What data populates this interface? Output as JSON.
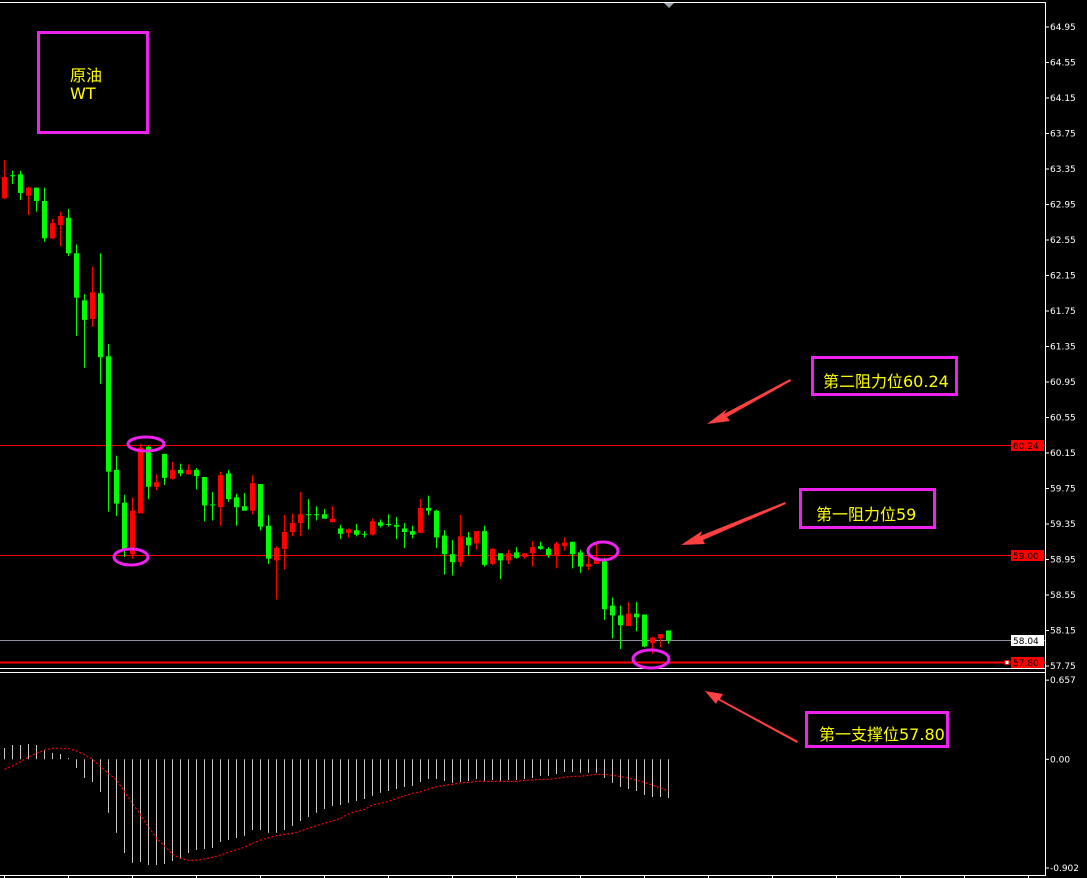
{
  "instrument_box": {
    "line1": "原油",
    "line2": "WT"
  },
  "annotations": [
    {
      "label": "第二阻力位60.24"
    },
    {
      "label": "第一阻力位59"
    },
    {
      "label": "第一支撑位57.80"
    }
  ],
  "colors": {
    "background": "#000000",
    "up_candle": "#ff0000",
    "down_candle": "#00ff00",
    "annotation_border": "#ee22ee",
    "annotation_text": "#ffff00",
    "arrow": "#ff4040",
    "level_line": "#ff0000",
    "last_price_line": "#8a8f99",
    "histogram": "#c8c8c8",
    "signal_line": "#ff0000"
  },
  "chart_data": [
    {
      "type": "candlestick",
      "price_axis_ticks": [
        "64.95",
        "64.55",
        "64.15",
        "63.75",
        "63.35",
        "62.95",
        "62.55",
        "62.15",
        "61.75",
        "61.35",
        "60.95",
        "60.55",
        "60.15",
        "59.75",
        "59.35",
        "58.95",
        "58.55",
        "58.15",
        "57.75"
      ],
      "ylim": [
        57.7,
        65.2
      ],
      "ohlc_fields": [
        "open",
        "high",
        "low",
        "close"
      ],
      "candles": [
        [
          63.02,
          63.45,
          63.01,
          63.26
        ],
        [
          63.28,
          63.33,
          63.18,
          63.27
        ],
        [
          63.29,
          63.33,
          63.0,
          63.08
        ],
        [
          63.05,
          63.15,
          62.83,
          63.14
        ],
        [
          63.14,
          63.14,
          62.87,
          62.99
        ],
        [
          62.99,
          63.14,
          62.53,
          62.57
        ],
        [
          62.57,
          62.79,
          62.56,
          62.74
        ],
        [
          62.72,
          62.87,
          62.48,
          62.82
        ],
        [
          62.8,
          62.9,
          62.37,
          62.4
        ],
        [
          62.4,
          62.5,
          61.47,
          61.9
        ],
        [
          61.87,
          61.94,
          61.11,
          61.65
        ],
        [
          61.66,
          62.25,
          61.57,
          61.96
        ],
        [
          61.95,
          62.4,
          60.93,
          61.23
        ],
        [
          61.24,
          61.38,
          59.49,
          59.94
        ],
        [
          59.96,
          60.12,
          59.44,
          59.58
        ],
        [
          59.59,
          59.68,
          58.98,
          59.06
        ],
        [
          59.01,
          59.65,
          58.96,
          59.5
        ],
        [
          59.47,
          60.25,
          59.47,
          60.21
        ],
        [
          60.22,
          60.23,
          59.63,
          59.77
        ],
        [
          59.77,
          59.91,
          59.73,
          59.82
        ],
        [
          60.14,
          60.14,
          59.79,
          59.87
        ],
        [
          59.86,
          60.05,
          59.85,
          59.96
        ],
        [
          59.96,
          60.03,
          59.89,
          59.92
        ],
        [
          59.91,
          60.02,
          59.91,
          59.96
        ],
        [
          59.96,
          59.98,
          59.74,
          59.89
        ],
        [
          59.88,
          59.88,
          59.38,
          59.56
        ],
        [
          59.57,
          59.71,
          59.39,
          59.56
        ],
        [
          59.54,
          59.94,
          59.33,
          59.9
        ],
        [
          59.92,
          59.96,
          59.6,
          59.63
        ],
        [
          59.65,
          59.69,
          59.33,
          59.54
        ],
        [
          59.55,
          59.7,
          59.5,
          59.5
        ],
        [
          59.5,
          59.9,
          59.46,
          59.81
        ],
        [
          59.8,
          59.8,
          59.28,
          59.32
        ],
        [
          59.33,
          59.45,
          58.9,
          58.96
        ],
        [
          58.94,
          59.1,
          58.5,
          59.08
        ],
        [
          59.07,
          59.45,
          58.84,
          59.26
        ],
        [
          59.26,
          59.47,
          59.21,
          59.36
        ],
        [
          59.36,
          59.71,
          59.21,
          59.46
        ],
        [
          59.46,
          59.63,
          59.29,
          59.45
        ],
        [
          59.46,
          59.55,
          59.39,
          59.45
        ],
        [
          59.46,
          59.52,
          59.41,
          59.41
        ],
        [
          59.37,
          59.55,
          59.37,
          59.41
        ],
        [
          59.3,
          59.34,
          59.18,
          59.24
        ],
        [
          59.25,
          59.3,
          59.2,
          59.29
        ],
        [
          59.28,
          59.35,
          59.21,
          59.23
        ],
        [
          59.24,
          59.27,
          59.2,
          59.23
        ],
        [
          59.23,
          59.41,
          59.22,
          59.38
        ],
        [
          59.37,
          59.4,
          59.31,
          59.33
        ],
        [
          59.35,
          59.46,
          59.32,
          59.34
        ],
        [
          59.34,
          59.43,
          59.18,
          59.32
        ],
        [
          59.3,
          59.36,
          59.08,
          59.26
        ],
        [
          59.27,
          59.33,
          59.19,
          59.23
        ],
        [
          59.25,
          59.63,
          59.25,
          59.53
        ],
        [
          59.53,
          59.67,
          59.45,
          59.5
        ],
        [
          59.5,
          59.51,
          59.08,
          59.2
        ],
        [
          59.22,
          59.28,
          58.78,
          59.01
        ],
        [
          59.01,
          59.17,
          58.77,
          58.92
        ],
        [
          58.92,
          59.45,
          58.87,
          59.21
        ],
        [
          59.2,
          59.26,
          59.0,
          59.11
        ],
        [
          59.13,
          59.27,
          59.06,
          59.27
        ],
        [
          59.27,
          59.33,
          58.87,
          58.89
        ],
        [
          58.9,
          59.08,
          58.89,
          59.07
        ],
        [
          59.02,
          59.02,
          58.73,
          58.94
        ],
        [
          58.94,
          59.06,
          58.9,
          59.02
        ],
        [
          59.03,
          59.09,
          58.96,
          58.97
        ],
        [
          58.98,
          59.02,
          58.96,
          59.02
        ],
        [
          59.02,
          59.16,
          58.87,
          59.09
        ],
        [
          59.1,
          59.15,
          59.06,
          59.07
        ],
        [
          59.07,
          59.09,
          58.97,
          59.0
        ],
        [
          59.0,
          59.15,
          58.85,
          59.13
        ],
        [
          59.1,
          59.2,
          59.05,
          59.14
        ],
        [
          59.15,
          59.15,
          58.85,
          59.01
        ],
        [
          59.03,
          59.06,
          58.8,
          58.87
        ],
        [
          58.87,
          58.99,
          58.83,
          58.9
        ],
        [
          58.9,
          59.12,
          58.9,
          58.97
        ],
        [
          58.95,
          58.97,
          58.27,
          58.39
        ],
        [
          58.43,
          58.52,
          58.06,
          58.32
        ],
        [
          58.32,
          58.43,
          57.94,
          58.21
        ],
        [
          58.2,
          58.47,
          58.2,
          58.34
        ],
        [
          58.34,
          58.47,
          58.14,
          58.3
        ],
        [
          58.33,
          58.33,
          57.96,
          57.97
        ],
        [
          58.01,
          58.08,
          57.89,
          58.07
        ],
        [
          58.06,
          58.11,
          57.96,
          58.11
        ],
        [
          58.15,
          58.15,
          58.0,
          58.04
        ]
      ],
      "levels": [
        {
          "value": 60.24,
          "label": "60.24",
          "style": "red"
        },
        {
          "value": 59.0,
          "label": "59.00",
          "style": "red"
        },
        {
          "value": 58.04,
          "label": "58.04",
          "style": "last"
        },
        {
          "value": 57.8,
          "label": "57.80",
          "style": "red-thick"
        }
      ]
    },
    {
      "type": "bar",
      "indicator": "MACD",
      "axis_ticks": [
        "0.657",
        "0.00",
        "-0.902"
      ],
      "ylim": [
        -0.902,
        0.657
      ],
      "histogram": [
        0.094,
        0.119,
        0.119,
        0.127,
        0.119,
        0.077,
        0.053,
        0.044,
        0.01,
        -0.072,
        -0.155,
        -0.188,
        -0.271,
        -0.445,
        -0.611,
        -0.778,
        -0.86,
        -0.852,
        -0.877,
        -0.877,
        -0.869,
        -0.844,
        -0.827,
        -0.778,
        -0.753,
        -0.744,
        -0.736,
        -0.686,
        -0.67,
        -0.653,
        -0.636,
        -0.587,
        -0.587,
        -0.611,
        -0.611,
        -0.587,
        -0.553,
        -0.512,
        -0.479,
        -0.445,
        -0.412,
        -0.387,
        -0.379,
        -0.362,
        -0.346,
        -0.329,
        -0.304,
        -0.279,
        -0.263,
        -0.246,
        -0.23,
        -0.221,
        -0.188,
        -0.163,
        -0.163,
        -0.18,
        -0.196,
        -0.188,
        -0.18,
        -0.163,
        -0.18,
        -0.172,
        -0.18,
        -0.172,
        -0.172,
        -0.163,
        -0.155,
        -0.138,
        -0.138,
        -0.122,
        -0.105,
        -0.105,
        -0.113,
        -0.113,
        -0.113,
        -0.155,
        -0.196,
        -0.23,
        -0.246,
        -0.263,
        -0.296,
        -0.313,
        -0.313,
        -0.321
      ],
      "signal": [
        -0.083,
        -0.055,
        -0.019,
        0.017,
        0.05,
        0.077,
        0.091,
        0.091,
        0.089,
        0.069,
        0.039,
        0,
        -0.061,
        -0.116,
        -0.172,
        -0.268,
        -0.365,
        -0.462,
        -0.559,
        -0.656,
        -0.719,
        -0.789,
        -0.822,
        -0.838,
        -0.838,
        -0.827,
        -0.813,
        -0.794,
        -0.772,
        -0.75,
        -0.73,
        -0.697,
        -0.67,
        -0.65,
        -0.634,
        -0.623,
        -0.614,
        -0.595,
        -0.573,
        -0.551,
        -0.531,
        -0.512,
        -0.49,
        -0.454,
        -0.432,
        -0.415,
        -0.379,
        -0.365,
        -0.349,
        -0.324,
        -0.304,
        -0.282,
        -0.271,
        -0.246,
        -0.227,
        -0.216,
        -0.208,
        -0.196,
        -0.191,
        -0.183,
        -0.183,
        -0.183,
        -0.183,
        -0.183,
        -0.183,
        -0.174,
        -0.172,
        -0.166,
        -0.166,
        -0.158,
        -0.149,
        -0.141,
        -0.141,
        -0.133,
        -0.125,
        -0.125,
        -0.133,
        -0.144,
        -0.155,
        -0.174,
        -0.191,
        -0.213,
        -0.238,
        -0.263
      ]
    }
  ]
}
